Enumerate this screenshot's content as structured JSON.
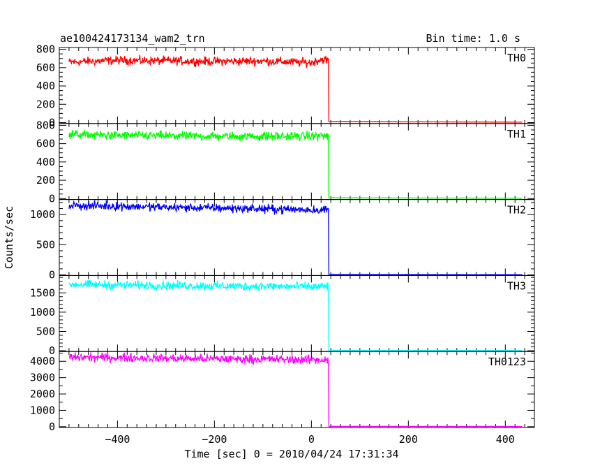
{
  "header": {
    "title": "ae100424173134_wam2_trn",
    "bin_time": "Bin time: 1.0 s"
  },
  "axes": {
    "ylabel": "Counts/sec",
    "xlabel": "Time [sec] 0 = 2010/04/24 17:31:34"
  },
  "chart_data": {
    "type": "line",
    "title": "ae100424173134_wam2_trn",
    "xlabel": "Time [sec] 0 = 2010/04/24 17:31:34",
    "ylabel": "Counts/sec",
    "xlim": [
      -520,
      460
    ],
    "x_ticks": [
      -400,
      -200,
      0,
      200,
      400
    ],
    "x_minor_step": 20,
    "step_time": 35,
    "x_start": -500,
    "x_end": 435,
    "grid": false,
    "panels": [
      {
        "name": "TH0",
        "color": "#ff0000",
        "ylim": [
          -10,
          820
        ],
        "ticks": [
          0,
          200,
          400,
          600,
          800
        ],
        "minor_step": 50,
        "segments": [
          [
            -500,
            660
          ],
          [
            -400,
            680
          ],
          [
            -300,
            675
          ],
          [
            -200,
            668
          ],
          [
            -100,
            672
          ],
          [
            0,
            655
          ],
          [
            20,
            690
          ],
          [
            35,
            680
          ],
          [
            36,
            10
          ],
          [
            435,
            5
          ]
        ]
      },
      {
        "name": "TH1",
        "color": "#00ff00",
        "ylim": [
          -10,
          820
        ],
        "ticks": [
          0,
          200,
          400,
          600,
          800
        ],
        "minor_step": 50,
        "segments": [
          [
            -500,
            700
          ],
          [
            -400,
            690
          ],
          [
            -300,
            685
          ],
          [
            -200,
            680
          ],
          [
            -100,
            680
          ],
          [
            0,
            680
          ],
          [
            20,
            690
          ],
          [
            35,
            680
          ],
          [
            36,
            8
          ],
          [
            435,
            5
          ]
        ]
      },
      {
        "name": "TH2",
        "color": "#0000ff",
        "ylim": [
          -10,
          1250
        ],
        "ticks": [
          0,
          500,
          1000
        ],
        "minor_step": 100,
        "segments": [
          [
            -500,
            1150
          ],
          [
            -400,
            1140
          ],
          [
            -300,
            1120
          ],
          [
            -200,
            1110
          ],
          [
            -100,
            1095
          ],
          [
            0,
            1080
          ],
          [
            35,
            1080
          ],
          [
            36,
            10
          ],
          [
            435,
            5
          ]
        ]
      },
      {
        "name": "TH3",
        "color": "#00ffff",
        "ylim": [
          -20,
          1950
        ],
        "ticks": [
          0,
          500,
          1000,
          1500
        ],
        "minor_step": 100,
        "segments": [
          [
            -500,
            1720
          ],
          [
            -400,
            1700
          ],
          [
            -300,
            1690
          ],
          [
            -200,
            1680
          ],
          [
            -100,
            1670
          ],
          [
            0,
            1660
          ],
          [
            35,
            1660
          ],
          [
            36,
            10
          ],
          [
            435,
            5
          ]
        ]
      },
      {
        "name": "TH0123",
        "color": "#ff00ff",
        "ylim": [
          -50,
          4600
        ],
        "ticks": [
          0,
          1000,
          2000,
          3000,
          4000
        ],
        "minor_step": 500,
        "segments": [
          [
            -500,
            4250
          ],
          [
            -400,
            4220
          ],
          [
            -300,
            4180
          ],
          [
            -200,
            4150
          ],
          [
            -100,
            4130
          ],
          [
            0,
            4100
          ],
          [
            35,
            4100
          ],
          [
            36,
            20
          ],
          [
            435,
            15
          ]
        ]
      }
    ]
  }
}
